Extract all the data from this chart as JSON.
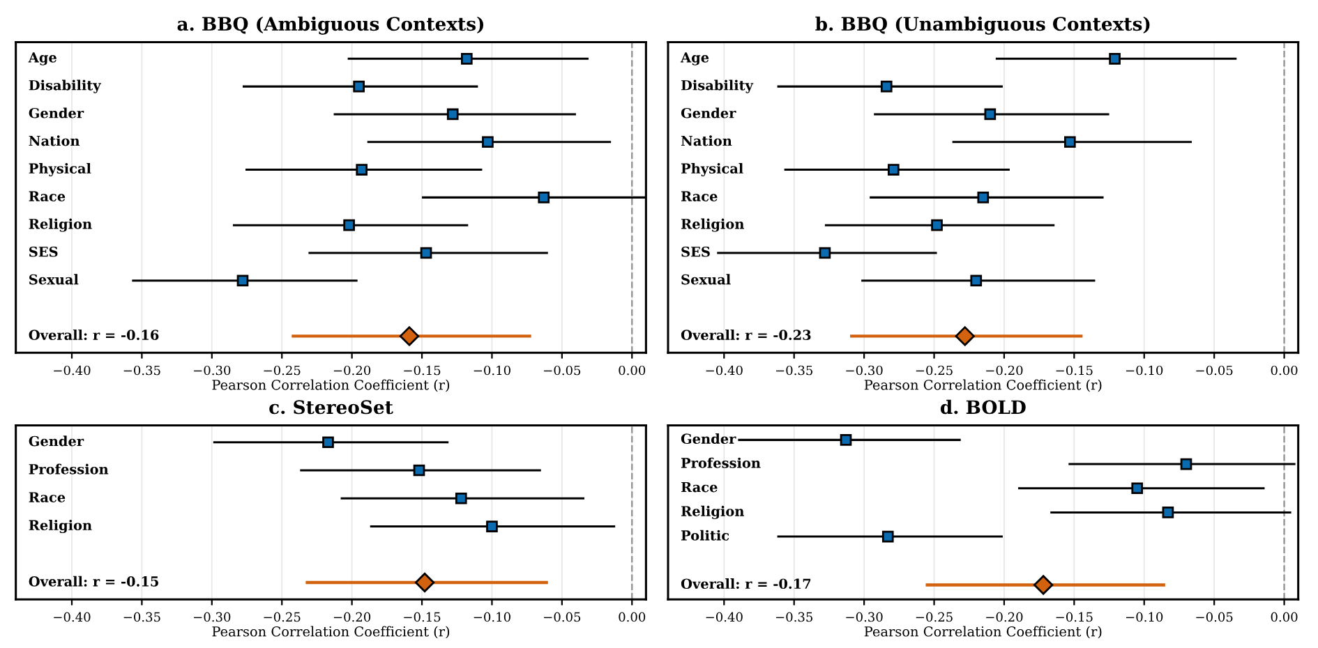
{
  "chart_data": [
    {
      "type": "scatter",
      "orientation": "horizontal",
      "title": "a. BBQ (Ambiguous Contexts)",
      "xlabel": "Pearson Correlation Coefficient (r)",
      "categories": [
        "Age",
        "Disability",
        "Gender",
        "Nation",
        "Physical",
        "Race",
        "Religion",
        "SES",
        "Sexual",
        null,
        "Overall: r = -0.16"
      ],
      "series": [
        {
          "color": "#0a6bb0",
          "marker": "square",
          "values": [
            -0.118,
            -0.195,
            -0.128,
            -0.103,
            -0.193,
            -0.063,
            -0.202,
            -0.147,
            -0.278,
            null,
            null
          ],
          "errors": [
            [
              -0.203,
              -0.031
            ],
            [
              -0.278,
              -0.11
            ],
            [
              -0.213,
              -0.04
            ],
            [
              -0.189,
              -0.015
            ],
            [
              -0.276,
              -0.107
            ],
            [
              -0.15,
              0.025
            ],
            [
              -0.285,
              -0.117
            ],
            [
              -0.231,
              -0.06
            ],
            [
              -0.357,
              -0.196
            ],
            null,
            null
          ]
        },
        {
          "color": "#d2620e",
          "marker": "diamond",
          "values": [
            null,
            null,
            null,
            null,
            null,
            null,
            null,
            null,
            null,
            null,
            -0.159
          ],
          "errors": [
            null,
            null,
            null,
            null,
            null,
            null,
            null,
            null,
            null,
            null,
            [
              -0.243,
              -0.072
            ]
          ]
        }
      ],
      "xlim": [
        -0.44,
        0.01
      ],
      "xticks": [
        {
          "value": -0.4,
          "label": "−0.40"
        },
        {
          "value": -0.35,
          "label": "−0.35"
        },
        {
          "value": -0.3,
          "label": "−0.30"
        },
        {
          "value": -0.25,
          "label": "−0.25"
        },
        {
          "value": -0.2,
          "label": "−0.20"
        },
        {
          "value": -0.15,
          "label": "−0.15"
        },
        {
          "value": -0.1,
          "label": "−0.10"
        },
        {
          "value": -0.05,
          "label": "−0.05"
        },
        {
          "value": 0,
          "label": "0.00"
        }
      ],
      "ref_lines": [
        {
          "axis": "x",
          "value": 0,
          "color": "#999999",
          "line_style": "dashed"
        }
      ],
      "grid": "x",
      "tick_labels": "x",
      "legend": false
    },
    {
      "type": "scatter",
      "orientation": "horizontal",
      "title": "b. BBQ (Unambiguous Contexts)",
      "xlabel": "Pearson Correlation Coefficient (r)",
      "categories": [
        "Age",
        "Disability",
        "Gender",
        "Nation",
        "Physical",
        "Race",
        "Religion",
        "SES",
        "Sexual",
        null,
        "Overall: r = -0.23"
      ],
      "series": [
        {
          "color": "#0a6bb0",
          "marker": "square",
          "values": [
            -0.121,
            -0.284,
            -0.21,
            -0.153,
            -0.279,
            -0.215,
            -0.248,
            -0.328,
            -0.22,
            null,
            null
          ],
          "errors": [
            [
              -0.206,
              -0.034
            ],
            [
              -0.362,
              -0.201
            ],
            [
              -0.293,
              -0.125
            ],
            [
              -0.237,
              -0.066
            ],
            [
              -0.357,
              -0.196
            ],
            [
              -0.296,
              -0.129
            ],
            [
              -0.328,
              -0.164
            ],
            [
              -0.405,
              -0.248
            ],
            [
              -0.302,
              -0.135
            ],
            null,
            null
          ]
        },
        {
          "color": "#d2620e",
          "marker": "diamond",
          "values": [
            null,
            null,
            null,
            null,
            null,
            null,
            null,
            null,
            null,
            null,
            -0.228
          ],
          "errors": [
            null,
            null,
            null,
            null,
            null,
            null,
            null,
            null,
            null,
            null,
            [
              -0.31,
              -0.144
            ]
          ]
        }
      ],
      "xlim": [
        -0.44,
        0.01
      ],
      "xticks": [
        {
          "value": -0.4,
          "label": "−0.40"
        },
        {
          "value": -0.35,
          "label": "−0.35"
        },
        {
          "value": -0.3,
          "label": "−0.30"
        },
        {
          "value": -0.25,
          "label": "−0.25"
        },
        {
          "value": -0.2,
          "label": "−0.20"
        },
        {
          "value": -0.15,
          "label": "−0.15"
        },
        {
          "value": -0.1,
          "label": "−0.10"
        },
        {
          "value": -0.05,
          "label": "−0.05"
        },
        {
          "value": 0,
          "label": "0.00"
        }
      ],
      "ref_lines": [
        {
          "axis": "x",
          "value": 0,
          "color": "#999999",
          "line_style": "dashed"
        }
      ],
      "grid": "x",
      "tick_labels": "x",
      "legend": false
    },
    {
      "type": "scatter",
      "orientation": "horizontal",
      "title": "c. StereoSet",
      "xlabel": "Pearson Correlation Coefficient (r)",
      "categories": [
        "Gender",
        "Profession",
        "Race",
        "Religion",
        null,
        "Overall: r = -0.15"
      ],
      "series": [
        {
          "color": "#0a6bb0",
          "marker": "square",
          "values": [
            -0.217,
            -0.152,
            -0.122,
            -0.1,
            null,
            null
          ],
          "errors": [
            [
              -0.299,
              -0.131
            ],
            [
              -0.237,
              -0.065
            ],
            [
              -0.208,
              -0.034
            ],
            [
              -0.187,
              -0.012
            ],
            null,
            null
          ]
        },
        {
          "color": "#d2620e",
          "marker": "diamond",
          "values": [
            null,
            null,
            null,
            null,
            null,
            -0.148
          ],
          "errors": [
            null,
            null,
            null,
            null,
            null,
            [
              -0.233,
              -0.06
            ]
          ]
        }
      ],
      "xlim": [
        -0.44,
        0.01
      ],
      "xticks": [
        {
          "value": -0.4,
          "label": "−0.40"
        },
        {
          "value": -0.35,
          "label": "−0.35"
        },
        {
          "value": -0.3,
          "label": "−0.30"
        },
        {
          "value": -0.25,
          "label": "−0.25"
        },
        {
          "value": -0.2,
          "label": "−0.20"
        },
        {
          "value": -0.15,
          "label": "−0.15"
        },
        {
          "value": -0.1,
          "label": "−0.10"
        },
        {
          "value": -0.05,
          "label": "−0.05"
        },
        {
          "value": 0,
          "label": "0.00"
        }
      ],
      "ref_lines": [
        {
          "axis": "x",
          "value": 0,
          "color": "#999999",
          "line_style": "dashed"
        }
      ],
      "grid": "x",
      "tick_labels": "x",
      "legend": false
    },
    {
      "type": "scatter",
      "orientation": "horizontal",
      "title": "d. BOLD",
      "xlabel": "Pearson Correlation Coefficient (r)",
      "categories": [
        "Gender",
        "Profession",
        "Race",
        "Religion",
        "Politic",
        null,
        "Overall: r = -0.17"
      ],
      "series": [
        {
          "color": "#0a6bb0",
          "marker": "square",
          "values": [
            -0.313,
            -0.07,
            -0.105,
            -0.083,
            -0.283,
            null,
            null
          ],
          "errors": [
            [
              -0.39,
              -0.231
            ],
            [
              -0.154,
              0.008
            ],
            [
              -0.19,
              -0.014
            ],
            [
              -0.167,
              0.005
            ],
            [
              -0.362,
              -0.201
            ],
            null,
            null
          ]
        },
        {
          "color": "#d2620e",
          "marker": "diamond",
          "values": [
            null,
            null,
            null,
            null,
            null,
            null,
            -0.172
          ],
          "errors": [
            null,
            null,
            null,
            null,
            null,
            null,
            [
              -0.256,
              -0.085
            ]
          ]
        }
      ],
      "xlim": [
        -0.44,
        0.01
      ],
      "xticks": [
        {
          "value": -0.4,
          "label": "−0.40"
        },
        {
          "value": -0.35,
          "label": "−0.35"
        },
        {
          "value": -0.3,
          "label": "−0.30"
        },
        {
          "value": -0.25,
          "label": "−0.25"
        },
        {
          "value": -0.2,
          "label": "−0.20"
        },
        {
          "value": -0.15,
          "label": "−0.15"
        },
        {
          "value": -0.1,
          "label": "−0.10"
        },
        {
          "value": -0.05,
          "label": "−0.05"
        },
        {
          "value": 0,
          "label": "0.00"
        }
      ],
      "ref_lines": [
        {
          "axis": "x",
          "value": 0,
          "color": "#999999",
          "line_style": "dashed"
        }
      ],
      "grid": "x",
      "tick_labels": "x",
      "legend": false
    }
  ]
}
